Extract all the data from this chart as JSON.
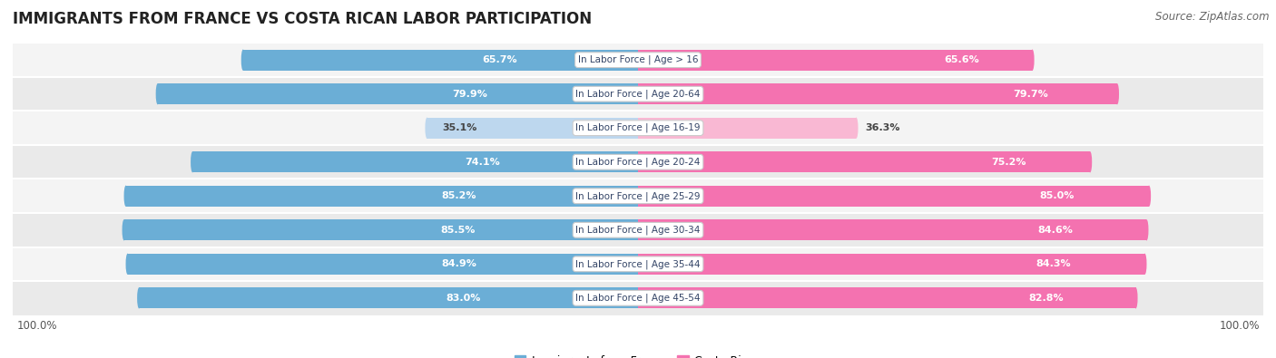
{
  "title": "IMMIGRANTS FROM FRANCE VS COSTA RICAN LABOR PARTICIPATION",
  "source": "Source: ZipAtlas.com",
  "categories": [
    "In Labor Force | Age > 16",
    "In Labor Force | Age 20-64",
    "In Labor Force | Age 16-19",
    "In Labor Force | Age 20-24",
    "In Labor Force | Age 25-29",
    "In Labor Force | Age 30-34",
    "In Labor Force | Age 35-44",
    "In Labor Force | Age 45-54"
  ],
  "france_values": [
    65.7,
    79.9,
    35.1,
    74.1,
    85.2,
    85.5,
    84.9,
    83.0
  ],
  "costarica_values": [
    65.6,
    79.7,
    36.3,
    75.2,
    85.0,
    84.6,
    84.3,
    82.8
  ],
  "france_color": "#6BAED6",
  "france_color_light": "#BDD7EE",
  "costarica_color": "#F472B0",
  "costarica_color_light": "#F9B8D3",
  "row_bg_even": "#F4F4F4",
  "row_bg_odd": "#EAEAEA",
  "max_value": 100.0,
  "legend_france": "Immigrants from France",
  "legend_costarica": "Costa Rican",
  "title_fontsize": 12,
  "source_fontsize": 8.5,
  "bar_height": 0.62,
  "value_threshold": 50
}
